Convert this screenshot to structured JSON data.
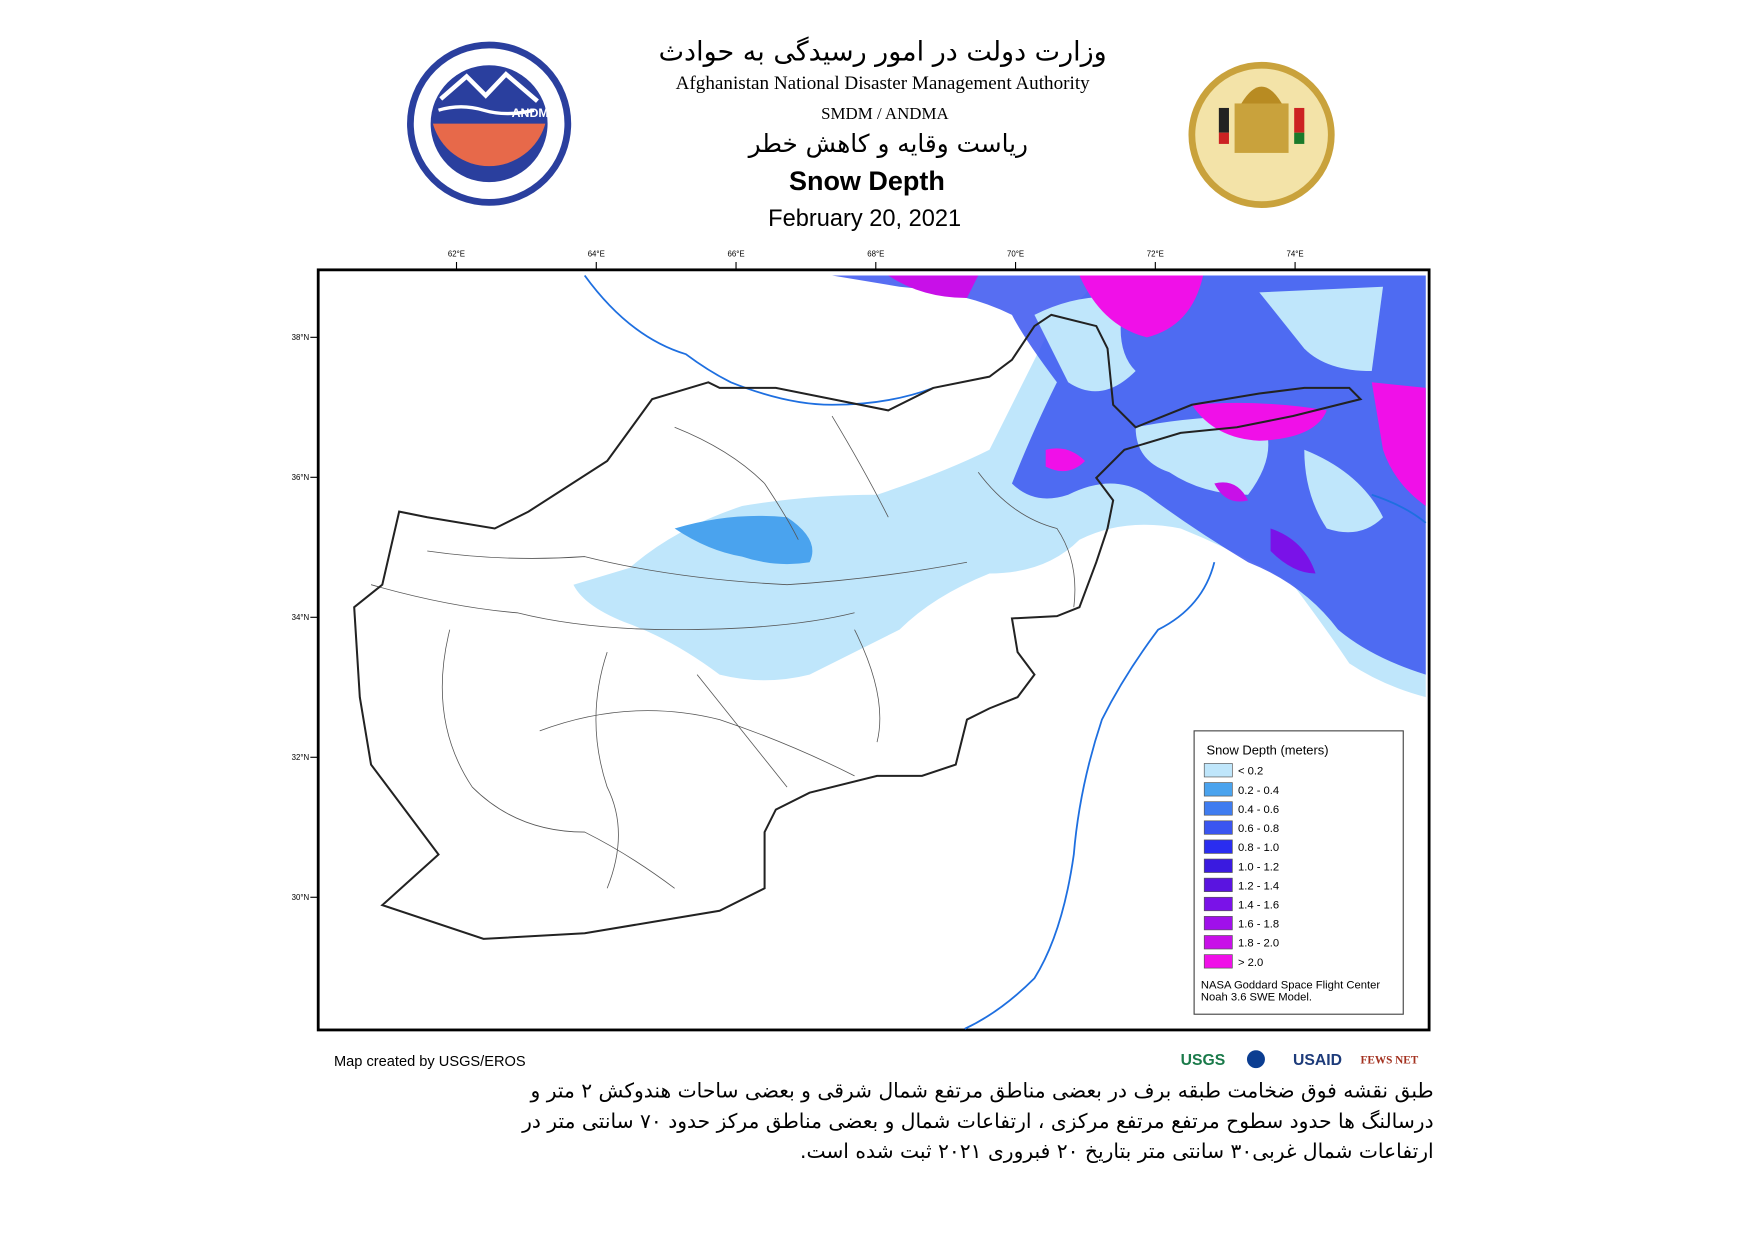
{
  "header": {
    "title_fa": "وزارت دولت در امور رسیدگی به حوادث",
    "authority": "Afghanistan National Disaster Management Authority",
    "unit": "SMDM / ANDMA",
    "subtitle_fa": "ریاست وقایه و کاهش خطر",
    "map_title": "Snow Depth",
    "date": "February 20, 2021",
    "logo_text": "ANDMA"
  },
  "map": {
    "lon_labels": [
      "62°E",
      "64°E",
      "66°E",
      "68°E",
      "70°E",
      "72°E",
      "74°E"
    ],
    "lat_labels": [
      "38°N",
      "36°N",
      "34°N",
      "32°N",
      "30°N"
    ]
  },
  "legend": {
    "title": "Snow Depth (meters)",
    "items": [
      {
        "label": "< 0.2",
        "color": "#bfe6fb"
      },
      {
        "label": "0.2 - 0.4",
        "color": "#4aa3ee"
      },
      {
        "label": "0.4 - 0.6",
        "color": "#3f7cf0"
      },
      {
        "label": "0.6 - 0.8",
        "color": "#3a55f0"
      },
      {
        "label": "0.8 - 1.0",
        "color": "#2a2df0"
      },
      {
        "label": "1.0 - 1.2",
        "color": "#3a1ae0"
      },
      {
        "label": "1.2 - 1.4",
        "color": "#5a14e0"
      },
      {
        "label": "1.4 - 1.6",
        "color": "#7a12e8"
      },
      {
        "label": "1.6 - 1.8",
        "color": "#a010ea"
      },
      {
        "label": "1.8 - 2.0",
        "color": "#c810e8"
      },
      {
        "label": "> 2.0",
        "color": "#f010e8"
      }
    ],
    "credit": [
      "NASA Goddard Space Flight Center",
      "Noah 3.6 SWE Model."
    ]
  },
  "footer": {
    "credit": "Map created by USGS/EROS",
    "logos": [
      "USGS",
      "USAID",
      "FEWS NET"
    ],
    "description": [
      "طبق نقشه فوق ضخامت طبقه برف در بعضی مناطق مرتفع شمال شرقی و بعضی ساحات هندوکش ۲ متر و",
      "درسالنگ ها حدود سطوح مرتفع مرتفع مرکزی ، ارتفاعات شمال و بعضی مناطق مرکز حدود ۷۰ سانتی متر در",
      "ارتفاعات شمال غربی۳۰ سانتی متر بتاریخ ۲۰ فبروری ۲۰۲۱ ثبت شده است."
    ]
  }
}
